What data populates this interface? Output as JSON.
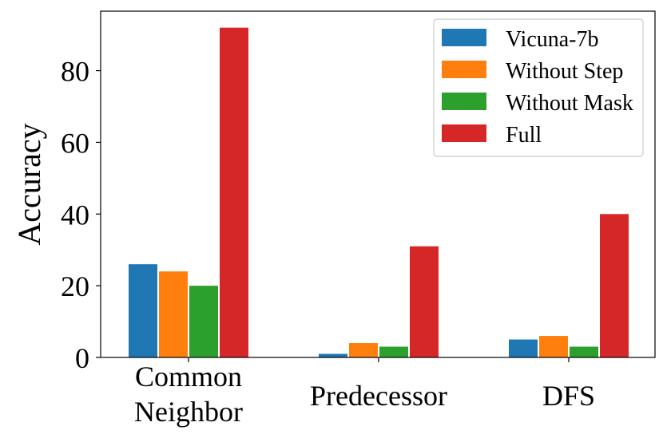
{
  "chart_data": {
    "type": "bar",
    "title": "",
    "xlabel": "",
    "ylabel": "Accuracy",
    "ylim": [
      0,
      96.6
    ],
    "yticks": [
      0,
      20,
      40,
      60,
      80
    ],
    "ytick_labels": [
      "0",
      "20",
      "40",
      "60",
      "80"
    ],
    "categories": [
      "Common Neighbor",
      "Predecessor",
      "DFS"
    ],
    "category_label_lines": [
      [
        "Common",
        "Neighbor"
      ],
      [
        "Predecessor"
      ],
      [
        "DFS"
      ]
    ],
    "legend_position": "top-right",
    "series": [
      {
        "name": "Vicuna-7b",
        "color": "#1f77b4",
        "values": [
          26,
          1,
          5
        ]
      },
      {
        "name": "Without Step",
        "color": "#ff7f0e",
        "values": [
          24,
          4,
          6
        ]
      },
      {
        "name": "Without Mask",
        "color": "#2ca02c",
        "values": [
          20,
          3,
          3
        ]
      },
      {
        "name": "Full",
        "color": "#d62728",
        "values": [
          92,
          31,
          40
        ]
      }
    ]
  }
}
